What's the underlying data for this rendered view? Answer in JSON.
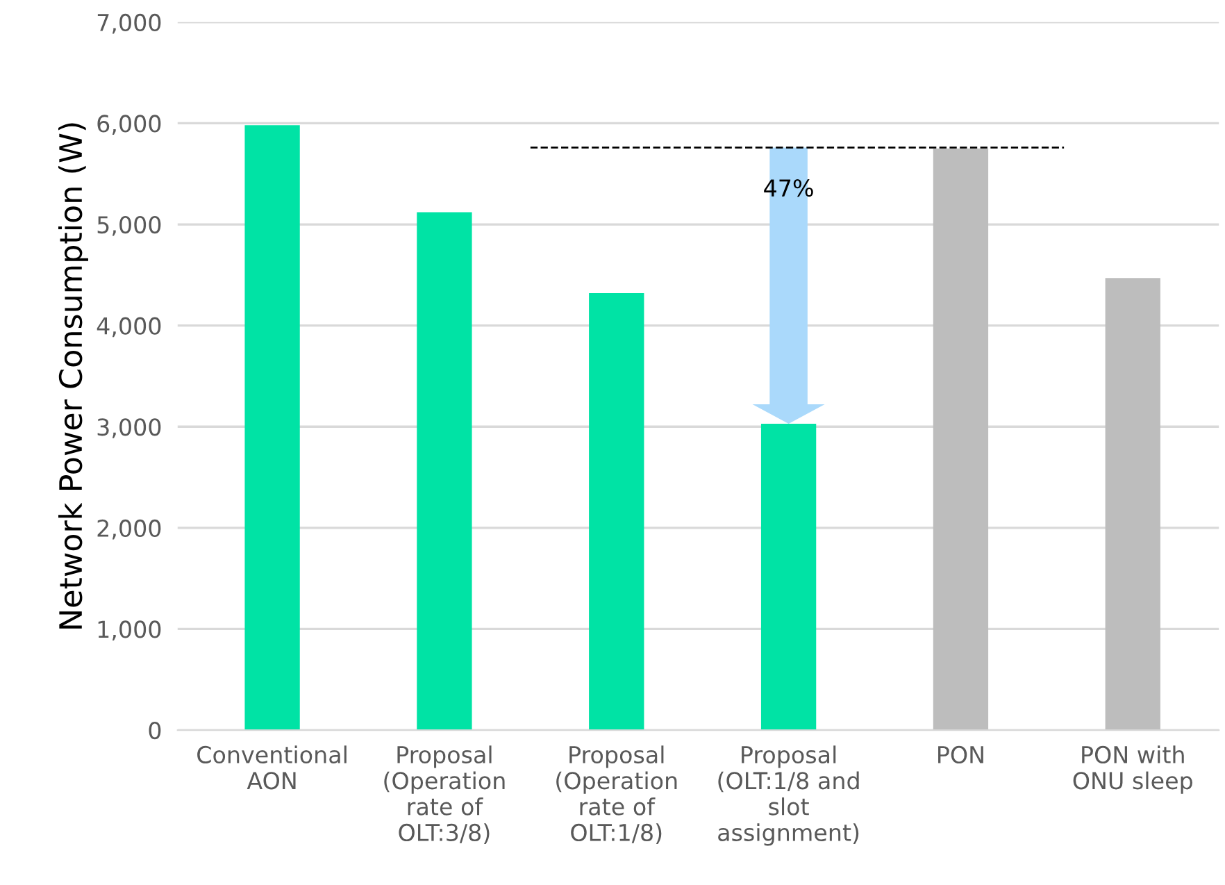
{
  "chart_data": {
    "type": "bar",
    "ylabel": "Network Power Consumption (W)",
    "categories": [
      "Conventional\nAON",
      "Proposal\n(Operation\nrate of\nOLT:3/8)",
      "Proposal\n(Operation\nrate of\nOLT:1/8)",
      "Proposal\n(OLT:1/8 and\nslot\nassignment)",
      "PON",
      "PON with\nONU sleep"
    ],
    "values": [
      5980,
      5120,
      4320,
      3030,
      5750,
      4470
    ],
    "colors": [
      "#00e3a5",
      "#00e3a5",
      "#00e3a5",
      "#00e3a5",
      "#bdbdbd",
      "#bdbdbd"
    ],
    "ylim": [
      0,
      7000
    ],
    "yticks": [
      {
        "value": 0,
        "label": "0"
      },
      {
        "value": 1000,
        "label": "1,000"
      },
      {
        "value": 2000,
        "label": "2,000"
      },
      {
        "value": 3000,
        "label": "3,000"
      },
      {
        "value": 4000,
        "label": "4,000"
      },
      {
        "value": 5000,
        "label": "5,000"
      },
      {
        "value": 6000,
        "label": "6,000"
      },
      {
        "value": 7000,
        "label": "7,000"
      }
    ],
    "grid": "y",
    "ref_lines": [
      {
        "axis": "y",
        "value": 5760,
        "line_style": "dashed",
        "color": "#000000"
      }
    ],
    "annotations": [
      "47%"
    ]
  }
}
